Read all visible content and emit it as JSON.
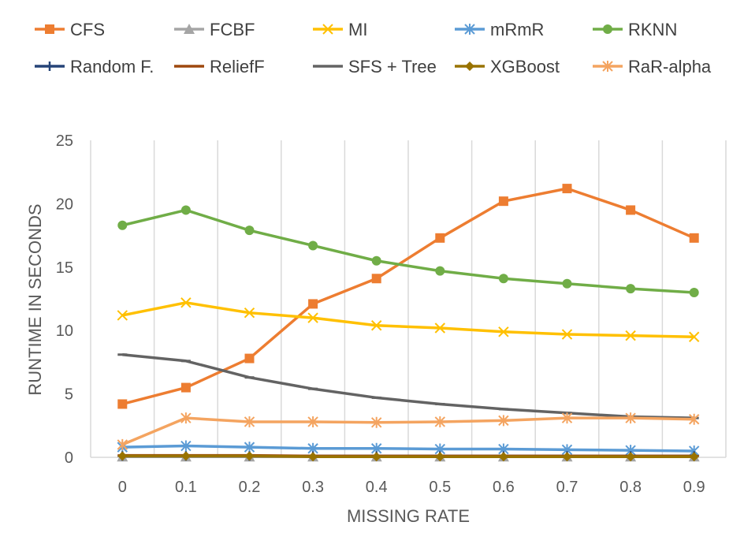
{
  "chart_data": {
    "type": "line",
    "title": "",
    "xlabel": "MISSING RATE",
    "ylabel": "RUNTIME IN SECONDS",
    "x": [
      "0",
      "0.1",
      "0.2",
      "0.3",
      "0.4",
      "0.5",
      "0.6",
      "0.7",
      "0.8",
      "0.9"
    ],
    "yticks": [
      "0",
      "5",
      "10",
      "15",
      "20",
      "25"
    ],
    "ylim": [
      0,
      25
    ],
    "grid": "vertical",
    "legend_position": "top",
    "series": [
      {
        "name": "CFS",
        "color": "#ED7D31",
        "marker": "square",
        "values": [
          4.2,
          5.5,
          7.8,
          12.1,
          14.1,
          17.3,
          20.2,
          21.2,
          19.5,
          17.3
        ]
      },
      {
        "name": "FCBF",
        "color": "#A5A5A5",
        "marker": "triangle",
        "values": [
          0.05,
          0.05,
          0.05,
          0.05,
          0.05,
          0.05,
          0.05,
          0.05,
          0.05,
          0.05
        ]
      },
      {
        "name": "MI",
        "color": "#FFC000",
        "marker": "x",
        "values": [
          11.2,
          12.2,
          11.4,
          11.0,
          10.4,
          10.2,
          9.9,
          9.7,
          9.6,
          9.5
        ]
      },
      {
        "name": "mRmR",
        "color": "#5B9BD5",
        "marker": "asterisk",
        "values": [
          0.8,
          0.9,
          0.8,
          0.7,
          0.7,
          0.65,
          0.65,
          0.6,
          0.55,
          0.5
        ]
      },
      {
        "name": "RKNN",
        "color": "#70AD47",
        "marker": "circle",
        "values": [
          18.3,
          19.5,
          17.9,
          16.7,
          15.5,
          14.7,
          14.1,
          13.7,
          13.3,
          13.0
        ]
      },
      {
        "name": "Random F.",
        "color": "#264478",
        "marker": "plus",
        "values": [
          0.1,
          0.1,
          0.1,
          0.1,
          0.1,
          0.1,
          0.1,
          0.1,
          0.1,
          0.1
        ]
      },
      {
        "name": "ReliefF",
        "color": "#9E480E",
        "marker": "dash",
        "values": [
          0.15,
          0.15,
          0.15,
          0.1,
          0.1,
          0.1,
          0.1,
          0.1,
          0.1,
          0.1
        ]
      },
      {
        "name": "SFS + Tree",
        "color": "#636363",
        "marker": "dash",
        "values": [
          8.1,
          7.6,
          6.3,
          5.4,
          4.7,
          4.2,
          3.8,
          3.5,
          3.2,
          3.1
        ]
      },
      {
        "name": "XGBoost",
        "color": "#997300",
        "marker": "diamond",
        "values": [
          0.1,
          0.1,
          0.1,
          0.05,
          0.05,
          0.05,
          0.05,
          0.05,
          0.05,
          0.05
        ]
      },
      {
        "name": "RaR-alpha",
        "color": "#F4A460",
        "marker": "asterisk",
        "values": [
          1.0,
          3.1,
          2.8,
          2.8,
          2.75,
          2.8,
          2.9,
          3.1,
          3.1,
          3.0
        ]
      }
    ]
  }
}
